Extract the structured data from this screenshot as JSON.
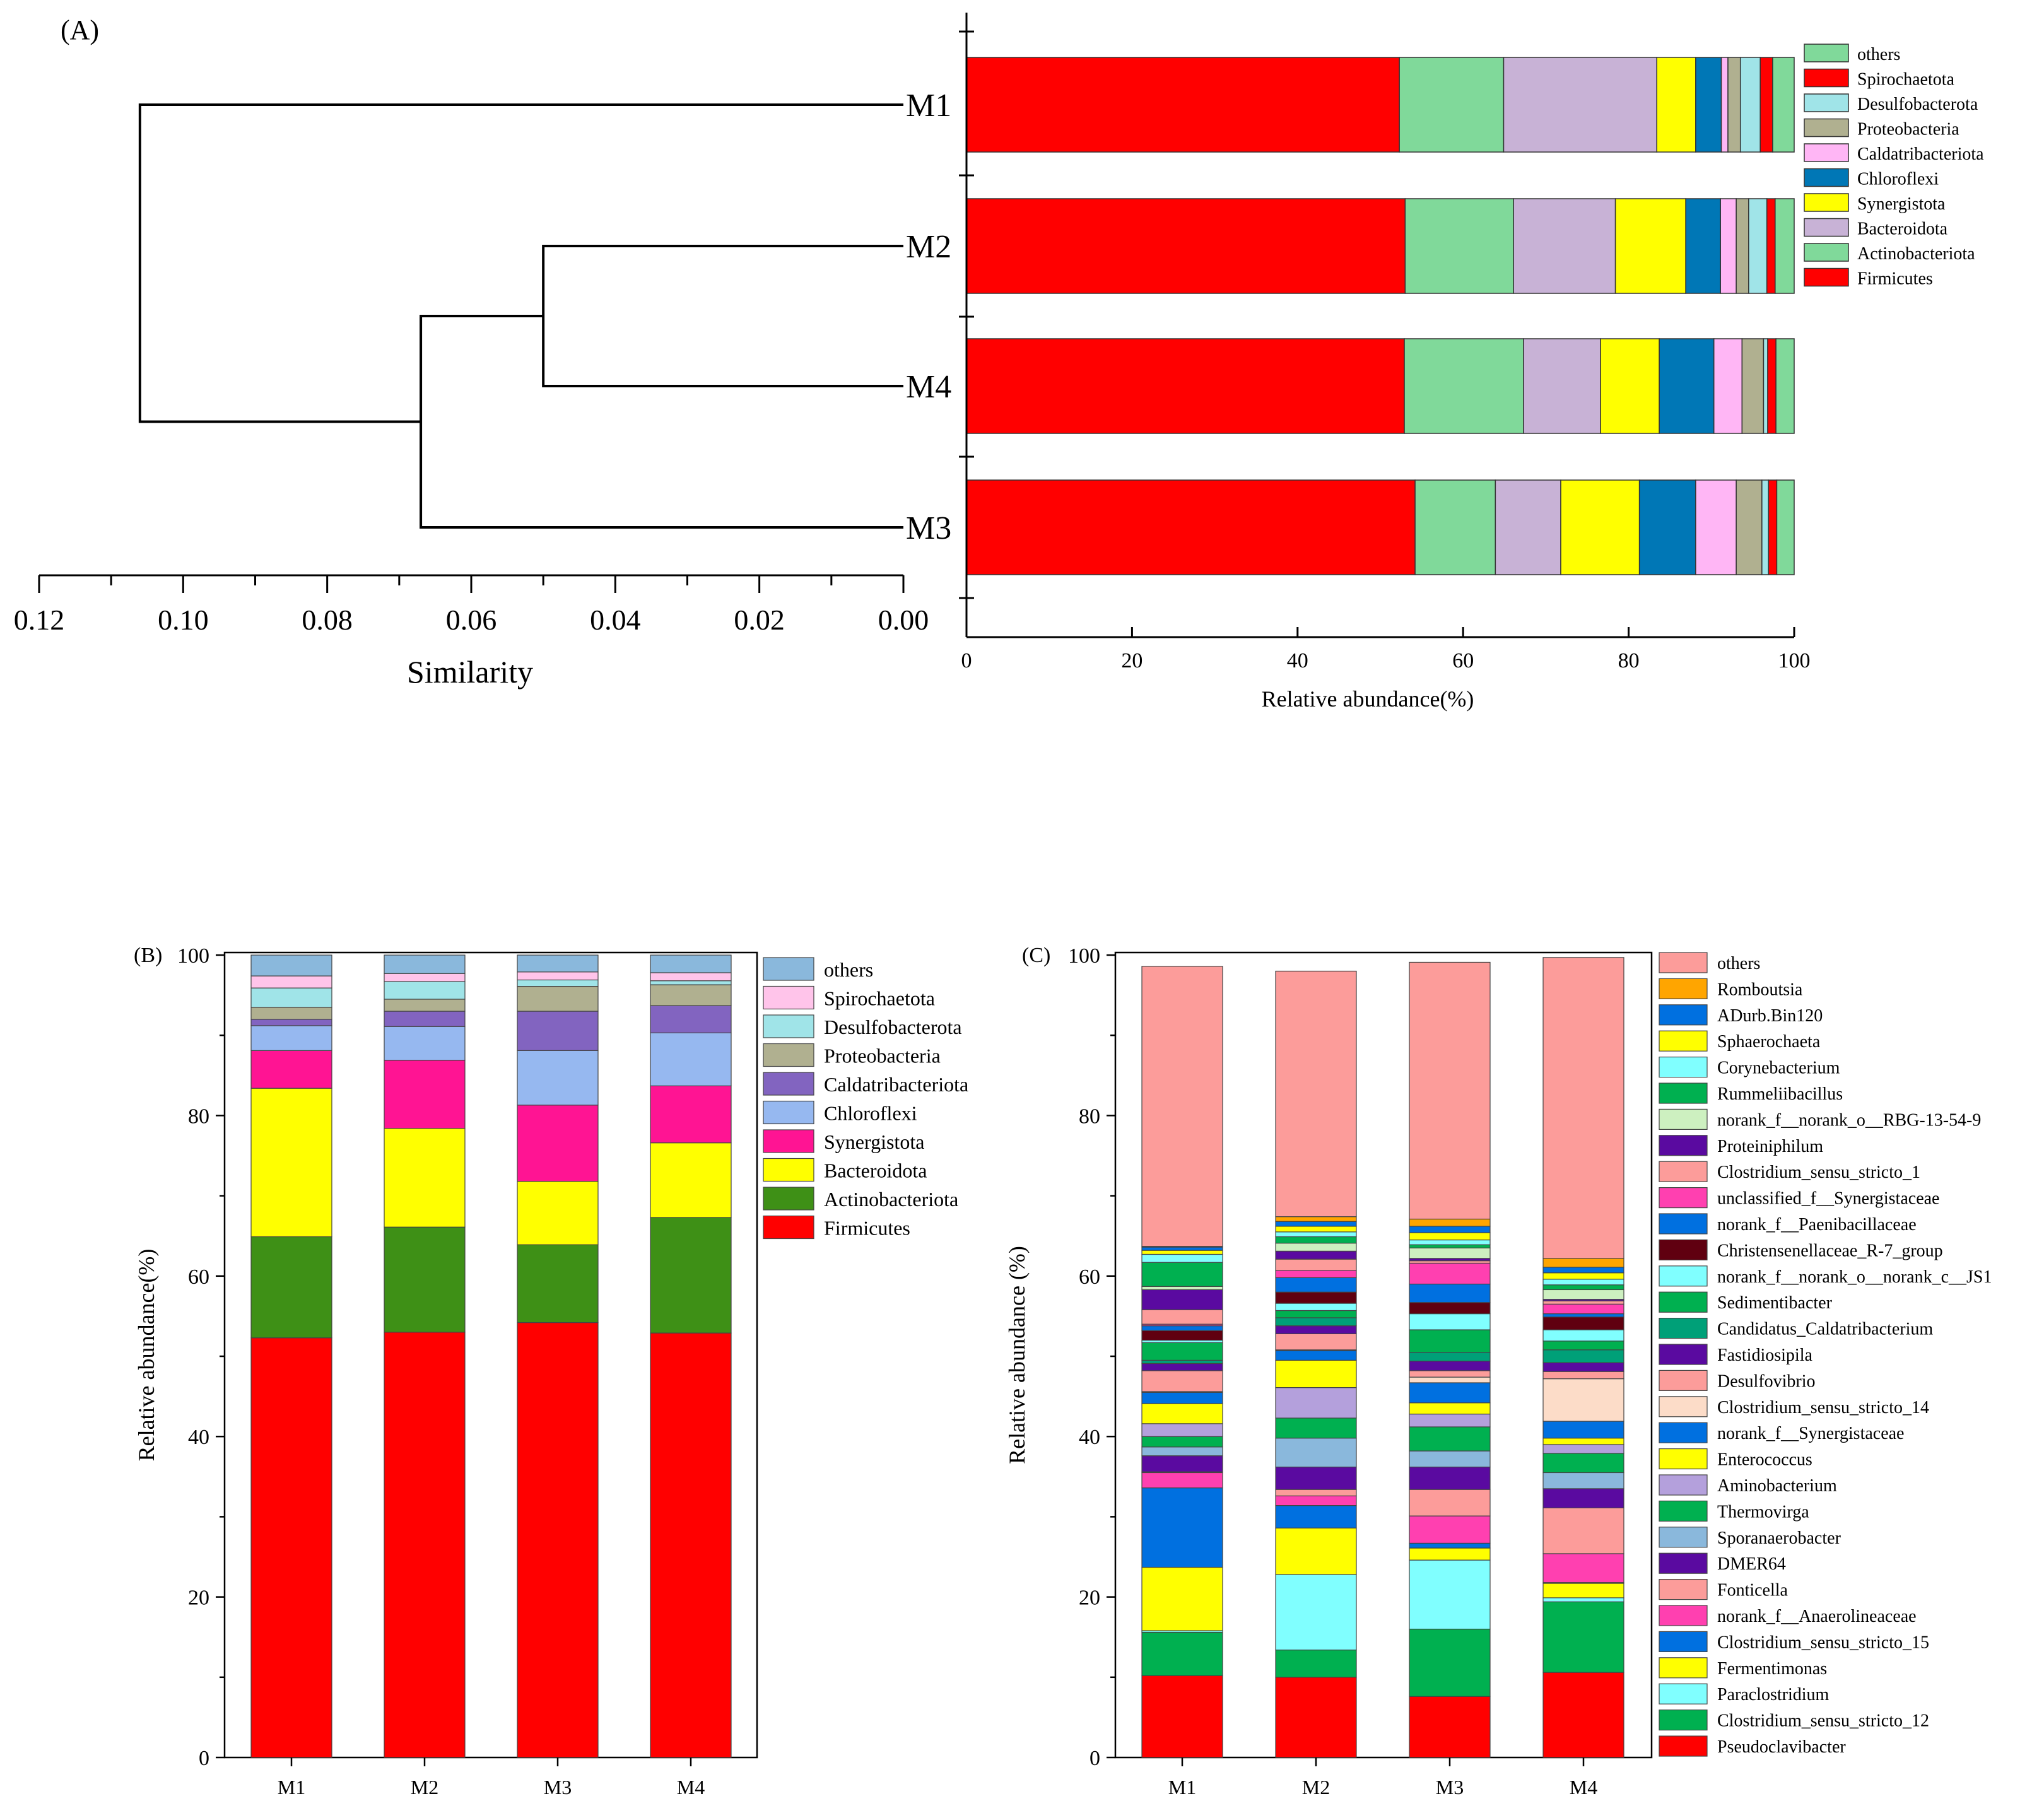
{
  "panels": {
    "a": "(A)",
    "b": "(B)",
    "c": "(C)"
  },
  "chart_data": [
    {
      "id": "dendrogram",
      "type": "dendrogram",
      "title": "",
      "xlabel": "Similarity",
      "x_ticks": [
        "0.12",
        "0.10",
        "0.08",
        "0.06",
        "0.04",
        "0.02",
        "0.00"
      ],
      "xlim": [
        0.12,
        0.0
      ],
      "leaves": [
        "M1",
        "M2",
        "M4",
        "M3"
      ],
      "merges": [
        {
          "left": "M2",
          "right": "M4",
          "height": 0.05
        },
        {
          "left": "M2+M4",
          "right": "M3",
          "height": 0.067
        },
        {
          "left": "M1",
          "right": "M2+M4+M3",
          "height": 0.106
        }
      ]
    },
    {
      "id": "phylum_horizontal",
      "type": "bar",
      "orientation": "horizontal",
      "stacked": true,
      "xlabel": "Relative abundance(%)",
      "x_ticks": [
        "0",
        "20",
        "40",
        "60",
        "80",
        "100"
      ],
      "xlim": [
        0,
        100
      ],
      "categories": [
        "M1",
        "M2",
        "M4",
        "M3"
      ],
      "legend_position": "right",
      "series": [
        {
          "name": "Firmicutes",
          "color": "#ff0000",
          "values": [
            52.3,
            53.0,
            52.9,
            54.2
          ]
        },
        {
          "name": "Actinobacteriota",
          "color": "#80d99a",
          "values": [
            12.6,
            13.1,
            14.4,
            9.7
          ]
        },
        {
          "name": "Bacteroidota",
          "color": "#c8b2d6",
          "values": [
            18.5,
            12.3,
            9.3,
            7.9
          ]
        },
        {
          "name": "Synergistota",
          "color": "#ffff00",
          "values": [
            4.7,
            8.5,
            7.1,
            9.5
          ]
        },
        {
          "name": "Chloroflexi",
          "color": "#0077b6",
          "values": [
            3.1,
            4.2,
            6.6,
            6.8
          ]
        },
        {
          "name": "Caldatribacteriota",
          "color": "#ffb6f5",
          "values": [
            0.8,
            1.9,
            3.4,
            4.9
          ]
        },
        {
          "name": "Proteobacteria",
          "color": "#b0b090",
          "values": [
            1.5,
            1.5,
            2.6,
            3.1
          ]
        },
        {
          "name": "Desulfobacterota",
          "color": "#a0e4e8",
          "values": [
            2.4,
            2.2,
            0.5,
            0.8
          ]
        },
        {
          "name": "Spirochaetota",
          "color": "#ff0000",
          "values": [
            1.5,
            1.0,
            1.0,
            1.0
          ]
        },
        {
          "name": "others",
          "color": "#80d99a",
          "values": [
            2.6,
            2.3,
            2.2,
            2.1
          ]
        }
      ],
      "legend_order": [
        "others",
        "Spirochaetota",
        "Desulfobacterota",
        "Proteobacteria",
        "Caldatribacteriota",
        "Chloroflexi",
        "Synergistota",
        "Bacteroidota",
        "Actinobacteriota",
        "Firmicutes"
      ]
    },
    {
      "id": "phylum_vertical",
      "type": "bar",
      "orientation": "vertical",
      "stacked": true,
      "ylabel": "Relative abundance(%)",
      "y_ticks": [
        "0",
        "20",
        "40",
        "60",
        "80",
        "100"
      ],
      "ylim": [
        0,
        100
      ],
      "categories": [
        "M1",
        "M2",
        "M3",
        "M4"
      ],
      "legend_position": "right",
      "series": [
        {
          "name": "Firmicutes",
          "color": "#ff0000",
          "values": [
            52.3,
            53.0,
            54.2,
            52.9
          ]
        },
        {
          "name": "Actinobacteriota",
          "color": "#3e9016",
          "values": [
            12.6,
            13.1,
            9.7,
            14.4
          ]
        },
        {
          "name": "Bacteroidota",
          "color": "#ffff00",
          "values": [
            18.5,
            12.3,
            7.9,
            9.3
          ]
        },
        {
          "name": "Synergistota",
          "color": "#ff1493",
          "values": [
            4.7,
            8.5,
            9.5,
            7.1
          ]
        },
        {
          "name": "Chloroflexi",
          "color": "#96b8f0",
          "values": [
            3.1,
            4.2,
            6.8,
            6.6
          ]
        },
        {
          "name": "Caldatribacteriota",
          "color": "#8264c0",
          "values": [
            0.8,
            1.9,
            4.9,
            3.4
          ]
        },
        {
          "name": "Proteobacteria",
          "color": "#b0b090",
          "values": [
            1.5,
            1.5,
            3.1,
            2.6
          ]
        },
        {
          "name": "Desulfobacterota",
          "color": "#a0e4e8",
          "values": [
            2.4,
            2.2,
            0.8,
            0.5
          ]
        },
        {
          "name": "Spirochaetota",
          "color": "#ffc4ea",
          "values": [
            1.5,
            1.0,
            1.0,
            1.0
          ]
        },
        {
          "name": "others",
          "color": "#8ab8dc",
          "values": [
            2.6,
            2.3,
            2.1,
            2.2
          ]
        }
      ],
      "legend_order": [
        "others",
        "Spirochaetota",
        "Desulfobacterota",
        "Proteobacteria",
        "Caldatribacteriota",
        "Chloroflexi",
        "Synergistota",
        "Bacteroidota",
        "Actinobacteriota",
        "Firmicutes"
      ]
    },
    {
      "id": "genus_vertical",
      "type": "bar",
      "orientation": "vertical",
      "stacked": true,
      "ylabel": "Relative abundance (%)",
      "y_ticks": [
        "0",
        "20",
        "40",
        "60",
        "80",
        "100"
      ],
      "ylim": [
        0,
        100
      ],
      "categories": [
        "M1",
        "M2",
        "M3",
        "M4"
      ],
      "legend_position": "right",
      "series": [
        {
          "name": "Pseudoclavibacter",
          "color": "#ff0000",
          "values": [
            10.2,
            10.0,
            7.6,
            10.6
          ]
        },
        {
          "name": "Clostridium_sensu_stricto_12",
          "color": "#00b050",
          "values": [
            5.4,
            3.4,
            8.4,
            8.8
          ]
        },
        {
          "name": "Paraclostridium",
          "color": "#80ffff",
          "values": [
            0.2,
            9.4,
            8.6,
            0.5
          ]
        },
        {
          "name": "Fermentimonas",
          "color": "#ffff00",
          "values": [
            7.9,
            5.8,
            1.5,
            1.8
          ]
        },
        {
          "name": "Clostridium_sensu_stricto_15",
          "color": "#0070e0",
          "values": [
            9.9,
            2.8,
            0.6,
            0.1
          ]
        },
        {
          "name": "norank_f__Anaerolineaceae",
          "color": "#ff40b0",
          "values": [
            1.9,
            1.2,
            3.4,
            3.6
          ]
        },
        {
          "name": "Fonticella",
          "color": "#fc9c9a",
          "values": [
            0.1,
            0.8,
            3.3,
            5.7
          ]
        },
        {
          "name": "DMER64",
          "color": "#5a0aa0",
          "values": [
            2.0,
            2.8,
            2.8,
            2.4
          ]
        },
        {
          "name": "Sporanaerobacter",
          "color": "#8ab8dc",
          "values": [
            1.1,
            3.6,
            2.0,
            2.0
          ]
        },
        {
          "name": "Thermovirga",
          "color": "#00b050",
          "values": [
            1.3,
            2.5,
            3.0,
            2.4
          ]
        },
        {
          "name": "Aminobacterium",
          "color": "#b4a0dc",
          "values": [
            1.6,
            3.8,
            1.6,
            1.1
          ]
        },
        {
          "name": "Enterococcus",
          "color": "#ffff00",
          "values": [
            2.5,
            3.4,
            1.4,
            0.8
          ]
        },
        {
          "name": "norank_f__Synergistaceae",
          "color": "#0070e0",
          "values": [
            1.4,
            1.2,
            2.5,
            2.1
          ]
        },
        {
          "name": "Clostridium_sensu_stricto_14",
          "color": "#fcdcc8",
          "values": [
            0.1,
            0.1,
            0.7,
            5.3
          ]
        },
        {
          "name": "Desulfovibrio",
          "color": "#fc9c9a",
          "values": [
            2.6,
            2.0,
            0.8,
            0.9
          ]
        },
        {
          "name": "Fastidiosipila",
          "color": "#5a0aa0",
          "values": [
            0.9,
            1.0,
            1.2,
            1.1
          ]
        },
        {
          "name": "Candidatus_Caldatribacterium",
          "color": "#00a078",
          "values": [
            0.4,
            1.0,
            1.1,
            1.6
          ]
        },
        {
          "name": "Sedimentibacter",
          "color": "#00b050",
          "values": [
            2.2,
            0.9,
            2.8,
            1.1
          ]
        },
        {
          "name": "norank_f__norank_o__norank_c__JS1",
          "color": "#80ffff",
          "values": [
            0.3,
            0.9,
            2.0,
            1.4
          ]
        },
        {
          "name": "Christensenellaceae_R-7_group",
          "color": "#600010",
          "values": [
            1.2,
            1.4,
            1.4,
            1.6
          ]
        },
        {
          "name": "norank_f__Paenibacillaceae",
          "color": "#0070e0",
          "values": [
            0.6,
            1.8,
            2.3,
            0.4
          ]
        },
        {
          "name": "unclassified_f__Synergistaceae",
          "color": "#ff40b0",
          "values": [
            0.2,
            0.9,
            2.6,
            1.2
          ]
        },
        {
          "name": "Clostridium_sensu_stricto_1",
          "color": "#fc9c9a",
          "values": [
            1.8,
            1.4,
            0.3,
            0.4
          ]
        },
        {
          "name": "Proteiniphilum",
          "color": "#5a0aa0",
          "values": [
            2.5,
            1.0,
            0.3,
            0.2
          ]
        },
        {
          "name": "norank_f__norank_o__RBG-13-54-9",
          "color": "#cdf0c0",
          "values": [
            0.4,
            1.0,
            1.3,
            1.2
          ]
        },
        {
          "name": "Rummeliibacillus",
          "color": "#00b050",
          "values": [
            3.0,
            0.8,
            0.4,
            0.6
          ]
        },
        {
          "name": "Corynebacterium",
          "color": "#80ffff",
          "values": [
            1.0,
            0.6,
            0.6,
            0.7
          ]
        },
        {
          "name": "Sphaerochaeta",
          "color": "#ffff00",
          "values": [
            0.5,
            0.7,
            0.9,
            0.8
          ]
        },
        {
          "name": "ADurb.Bin120",
          "color": "#0070e0",
          "values": [
            0.4,
            0.6,
            0.8,
            0.7
          ]
        },
        {
          "name": "Romboutsia",
          "color": "#ffa500",
          "values": [
            0.1,
            0.6,
            0.9,
            1.1
          ]
        },
        {
          "name": "others",
          "color": "#fc9c9a",
          "values": [
            34.9,
            30.6,
            32.0,
            37.5
          ]
        }
      ],
      "legend_order": [
        "others",
        "Romboutsia",
        "ADurb.Bin120",
        "Sphaerochaeta",
        "Corynebacterium",
        "Rummeliibacillus",
        "norank_f__norank_o__RBG-13-54-9",
        "Proteiniphilum",
        "Clostridium_sensu_stricto_1",
        "unclassified_f__Synergistaceae",
        "norank_f__Paenibacillaceae",
        "Christensenellaceae_R-7_group",
        "norank_f__norank_o__norank_c__JS1",
        "Sedimentibacter",
        "Candidatus_Caldatribacterium",
        "Fastidiosipila",
        "Desulfovibrio",
        "Clostridium_sensu_stricto_14",
        "norank_f__Synergistaceae",
        "Enterococcus",
        "Aminobacterium",
        "Thermovirga",
        "Sporanaerobacter",
        "DMER64",
        "Fonticella",
        "norank_f__Anaerolineaceae",
        "Clostridium_sensu_stricto_15",
        "Fermentimonas",
        "Paraclostridium",
        "Clostridium_sensu_stricto_12",
        "Pseudoclavibacter"
      ]
    }
  ]
}
